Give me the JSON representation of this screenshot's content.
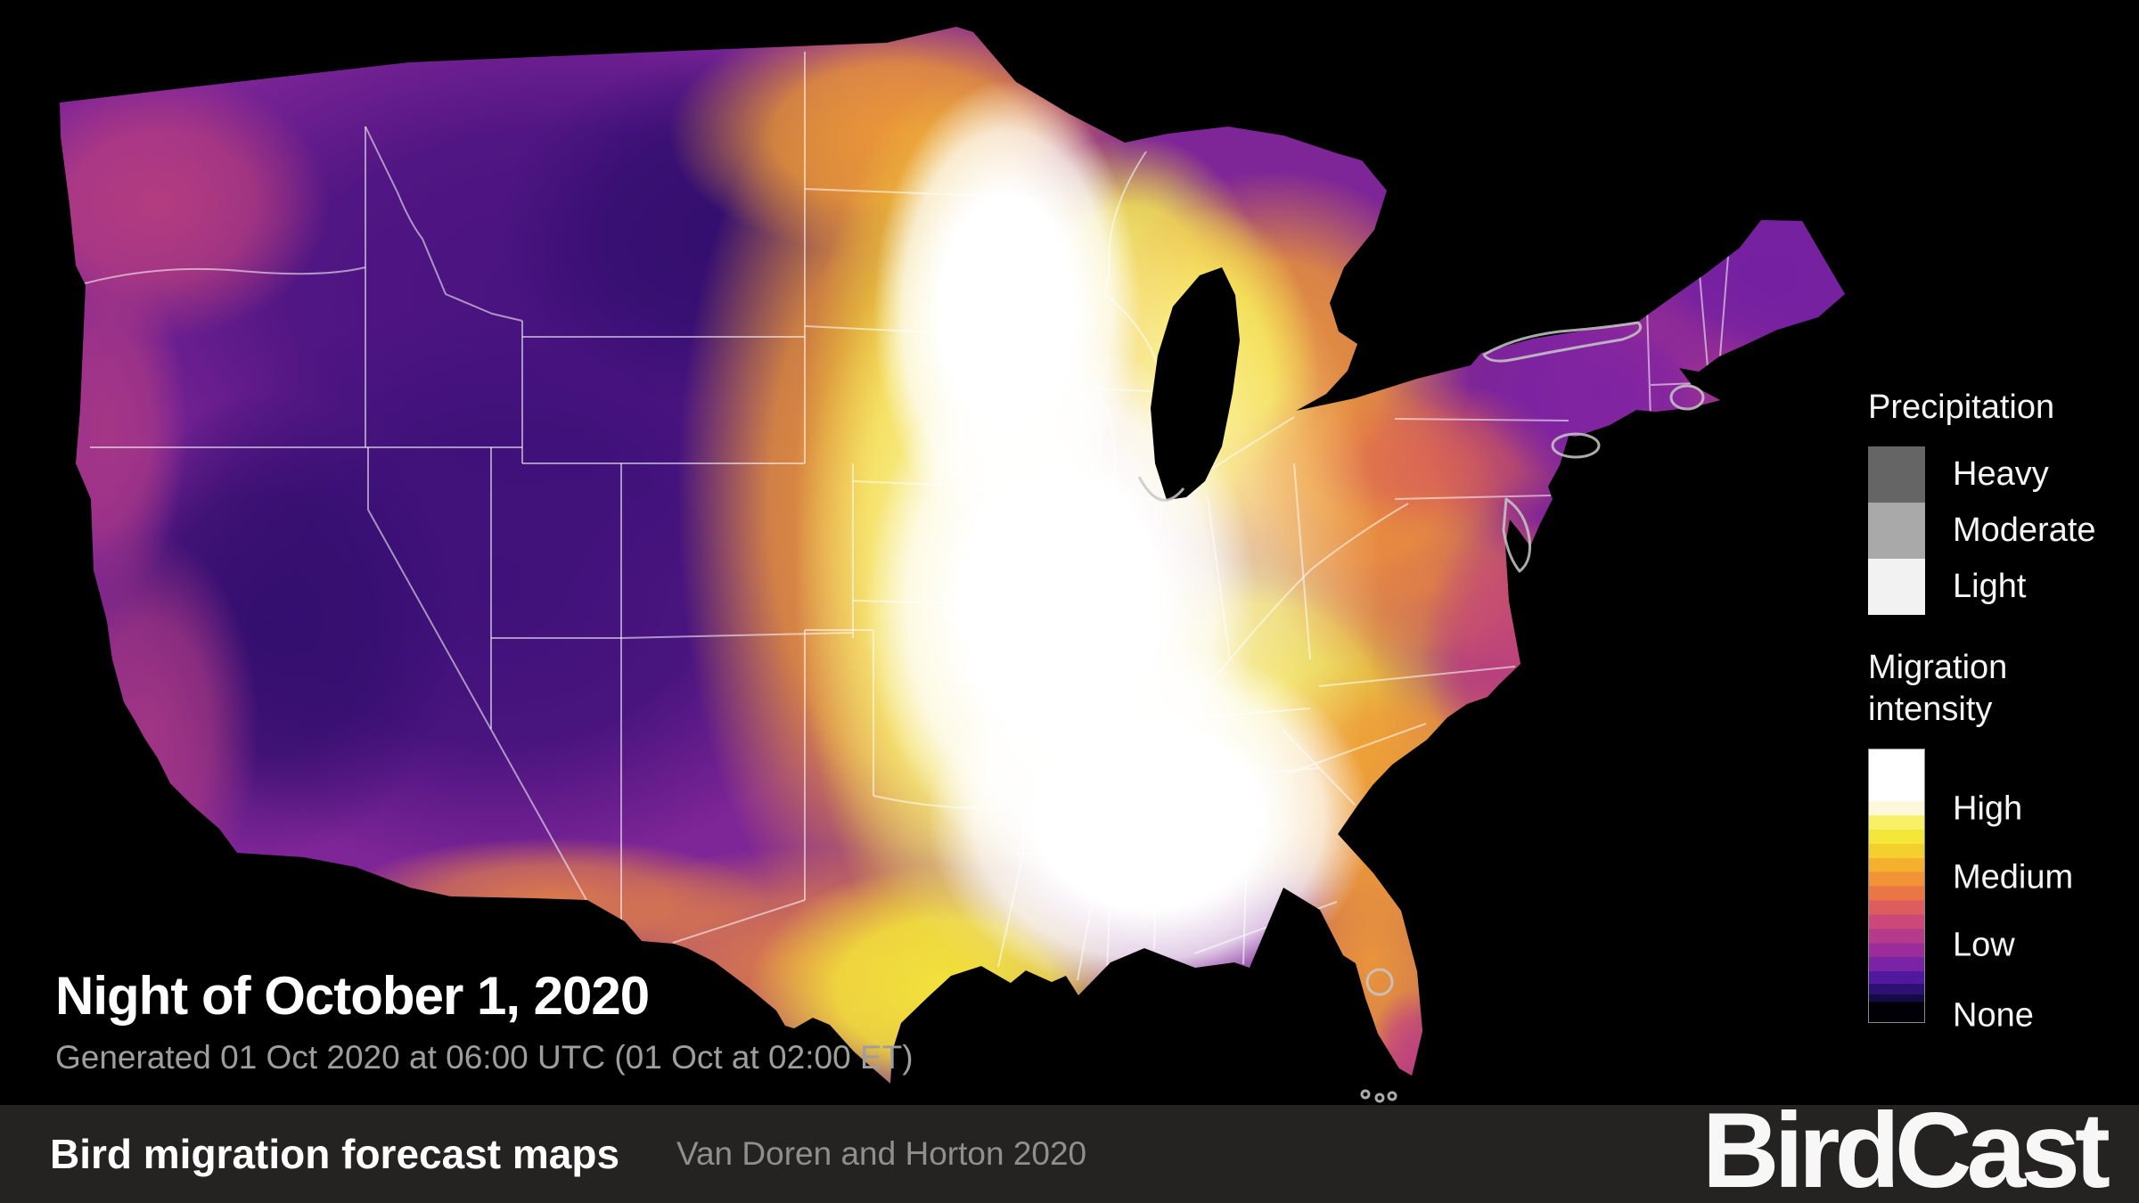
{
  "map": {
    "title": "Night of October 1, 2020",
    "subtitle": "Generated 01 Oct 2020 at 06:00 UTC (01 Oct at 02:00 ET)",
    "palette_reference": {
      "high": "#ffffff",
      "medium": "#f19437",
      "low": "#8a2a9e",
      "none": "#000000"
    }
  },
  "legend": {
    "precipitation": {
      "title": "Precipitation",
      "items": [
        {
          "label": "Heavy",
          "color": "#656565"
        },
        {
          "label": "Moderate",
          "color": "#a9a9a9"
        },
        {
          "label": "Light",
          "color": "#f2f2f2"
        }
      ]
    },
    "migration": {
      "title_line1": "Migration",
      "title_line2": "intensity",
      "labels": [
        "High",
        "Medium",
        "Low",
        "None"
      ],
      "scale": [
        {
          "color": "#ffffff",
          "span": 19.0
        },
        {
          "color": "#fdf8dc",
          "span": 5.2
        },
        {
          "color": "#f8f067",
          "span": 5.2
        },
        {
          "color": "#f3e73a",
          "span": 5.2
        },
        {
          "color": "#f4d02f",
          "span": 5.2
        },
        {
          "color": "#f5b02d",
          "span": 5.2
        },
        {
          "color": "#f19437",
          "span": 5.2
        },
        {
          "color": "#ea7545",
          "span": 5.2
        },
        {
          "color": "#dd5c5e",
          "span": 5.2
        },
        {
          "color": "#cc4878",
          "span": 5.2
        },
        {
          "color": "#b53a8c",
          "span": 5.2
        },
        {
          "color": "#9b2d9a",
          "span": 5.2
        },
        {
          "color": "#7b23a5",
          "span": 5.2
        },
        {
          "color": "#50189f",
          "span": 4.5
        },
        {
          "color": "#2c1173",
          "span": 4.0
        },
        {
          "color": "#140a45",
          "span": 2.7
        },
        {
          "color": "#000006",
          "span": 2.2
        }
      ]
    }
  },
  "footer": {
    "title": "Bird migration forecast maps",
    "credit": "Van Doren and Horton 2020",
    "logo": "BirdCast"
  }
}
